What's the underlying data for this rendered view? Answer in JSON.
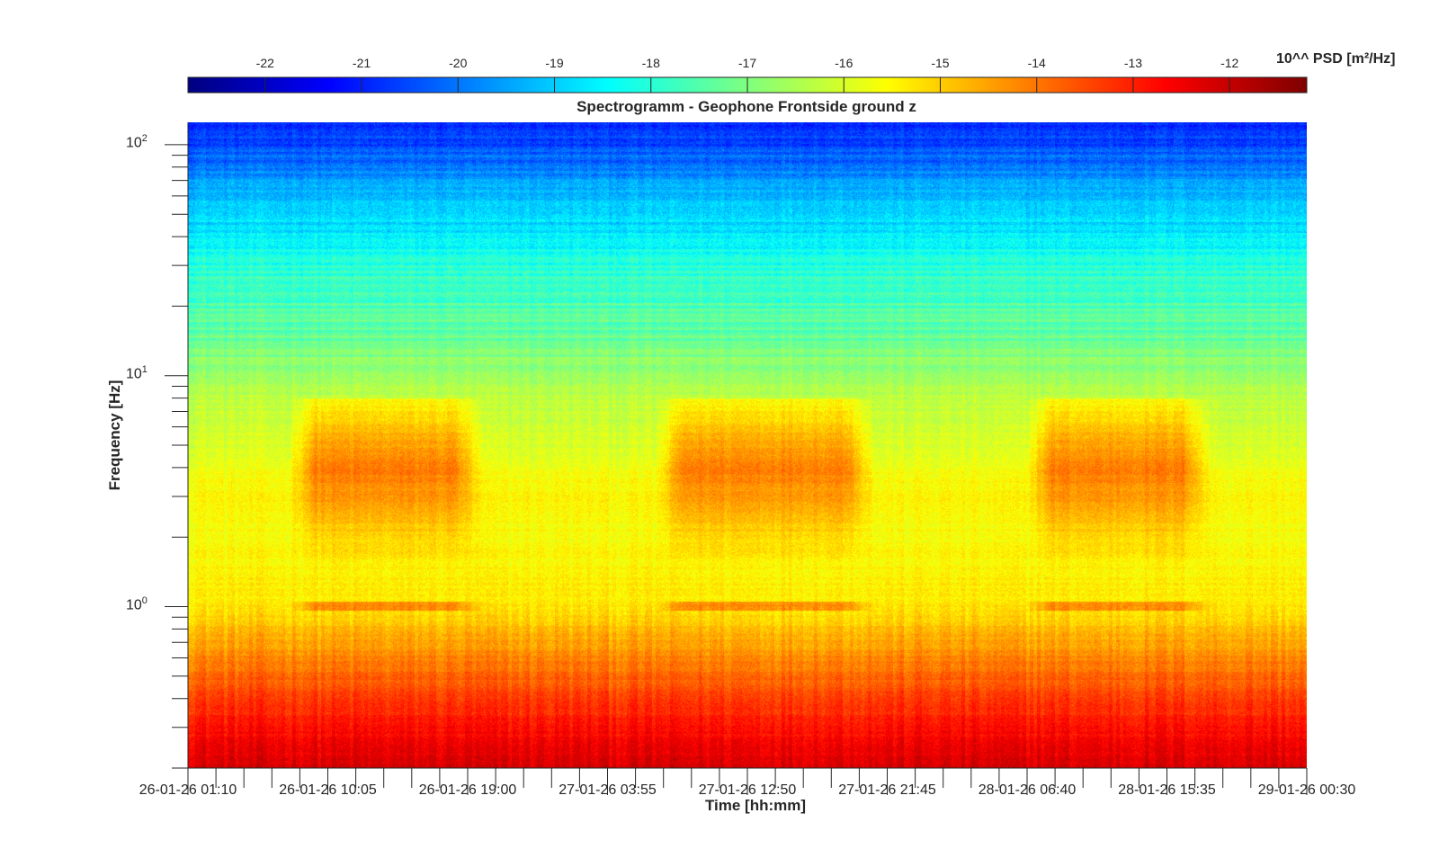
{
  "chart_data": {
    "type": "heatmap",
    "title": "Spectrogramm - Geophone Frontside ground z",
    "xlabel": "Time [hh:mm]",
    "ylabel": "Frequency [Hz]",
    "yscale": "log",
    "ylim": [
      0.2,
      125
    ],
    "y_tick_labels": [
      {
        "base": "10",
        "exp": "2",
        "value": 100
      },
      {
        "base": "10",
        "exp": "1",
        "value": 10
      },
      {
        "base": "10",
        "exp": "0",
        "value": 1
      }
    ],
    "x_tick_labels": [
      "26-01-26 01:10",
      "26-01-26 10:05",
      "26-01-26 19:00",
      "27-01-26 03:55",
      "27-01-26 12:50",
      "27-01-26 21:45",
      "28-01-26 06:40",
      "28-01-26 15:35",
      "29-01-26 00:30"
    ],
    "xlim": [
      "26-01-26 01:10",
      "29-01-26 00:30"
    ],
    "colorbar": {
      "label": "10^^ PSD [m²/Hz]",
      "ticks": [
        "-22",
        "-21",
        "-20",
        "-19",
        "-18",
        "-17",
        "-16",
        "-15",
        "-14",
        "-13",
        "-12"
      ],
      "range": [
        -22.8,
        -11.2
      ],
      "colormap": "jet",
      "placement": "top"
    },
    "psd_profile_log10": [
      {
        "freq": 0.2,
        "value": -12.2
      },
      {
        "freq": 0.3,
        "value": -12.8
      },
      {
        "freq": 0.5,
        "value": -13.8
      },
      {
        "freq": 0.8,
        "value": -14.8
      },
      {
        "freq": 1.0,
        "value": -15.3
      },
      {
        "freq": 2.0,
        "value": -15.6
      },
      {
        "freq": 3.2,
        "value": -15.5
      },
      {
        "freq": 5.0,
        "value": -16.0
      },
      {
        "freq": 8.0,
        "value": -16.3
      },
      {
        "freq": 15.0,
        "value": -17.3
      },
      {
        "freq": 30.0,
        "value": -18.0
      },
      {
        "freq": 60.0,
        "value": -19.3
      },
      {
        "freq": 100.0,
        "value": -20.5
      },
      {
        "freq": 125.0,
        "value": -21.0
      }
    ],
    "daytime_activity": {
      "band_hz": [
        2,
        8
      ],
      "peak_value_log10": -13.6,
      "active_periods": [
        [
          "26-01-26 07:30",
          "26-01-26 20:00"
        ],
        [
          "27-01-26 07:00",
          "27-01-26 21:00"
        ],
        [
          "28-01-26 06:30",
          "28-01-26 18:30"
        ]
      ]
    }
  }
}
